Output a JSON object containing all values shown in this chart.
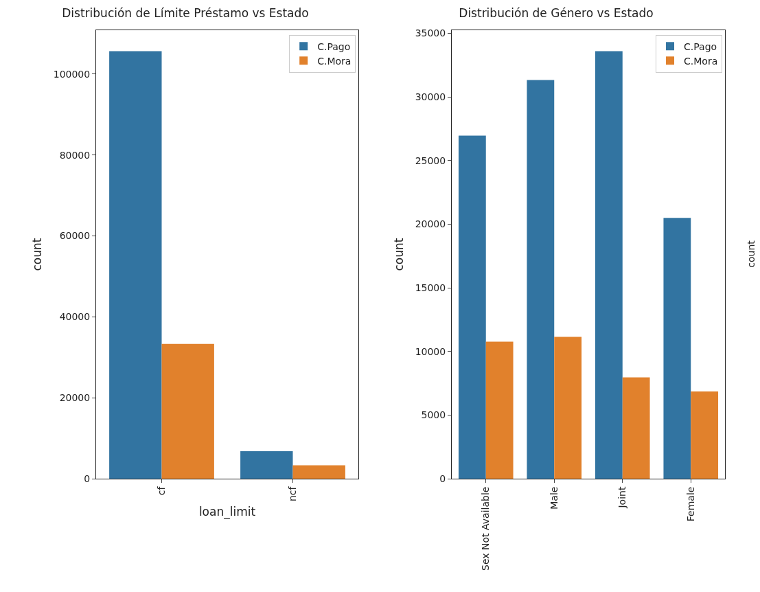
{
  "chart_data": [
    {
      "type": "bar",
      "title": "Distribución de Límite Préstamo vs Estado",
      "xlabel": "loan_limit",
      "ylabel": "count",
      "categories": [
        "cf",
        "ncf"
      ],
      "series": [
        {
          "name": "C.Pago",
          "color": "#3274a1",
          "values": [
            105700,
            6800
          ]
        },
        {
          "name": "C.Mora",
          "color": "#e1812c",
          "values": [
            33300,
            3300
          ]
        }
      ],
      "ylim": [
        0,
        110860
      ],
      "yticks": [
        0,
        20000,
        40000,
        60000,
        80000,
        100000
      ],
      "grid": false,
      "legend": "top right"
    },
    {
      "type": "bar",
      "title": "Distribución de Género vs Estado",
      "ylabel": "count",
      "categories": [
        "Sex Not Available",
        "Male",
        "Joint",
        "Female"
      ],
      "series": [
        {
          "name": "C.Pago",
          "color": "#3274a1",
          "values": [
            26950,
            31330,
            33590,
            20500
          ]
        },
        {
          "name": "C.Mora",
          "color": "#e1812c",
          "values": [
            10760,
            11150,
            7960,
            6860
          ]
        }
      ],
      "ylim": [
        0,
        35240
      ],
      "yticks": [
        0,
        5000,
        10000,
        15000,
        20000,
        25000,
        30000,
        35000
      ],
      "grid": false,
      "legend": "top right"
    },
    {
      "type": "other",
      "ylabel": "count"
    }
  ]
}
